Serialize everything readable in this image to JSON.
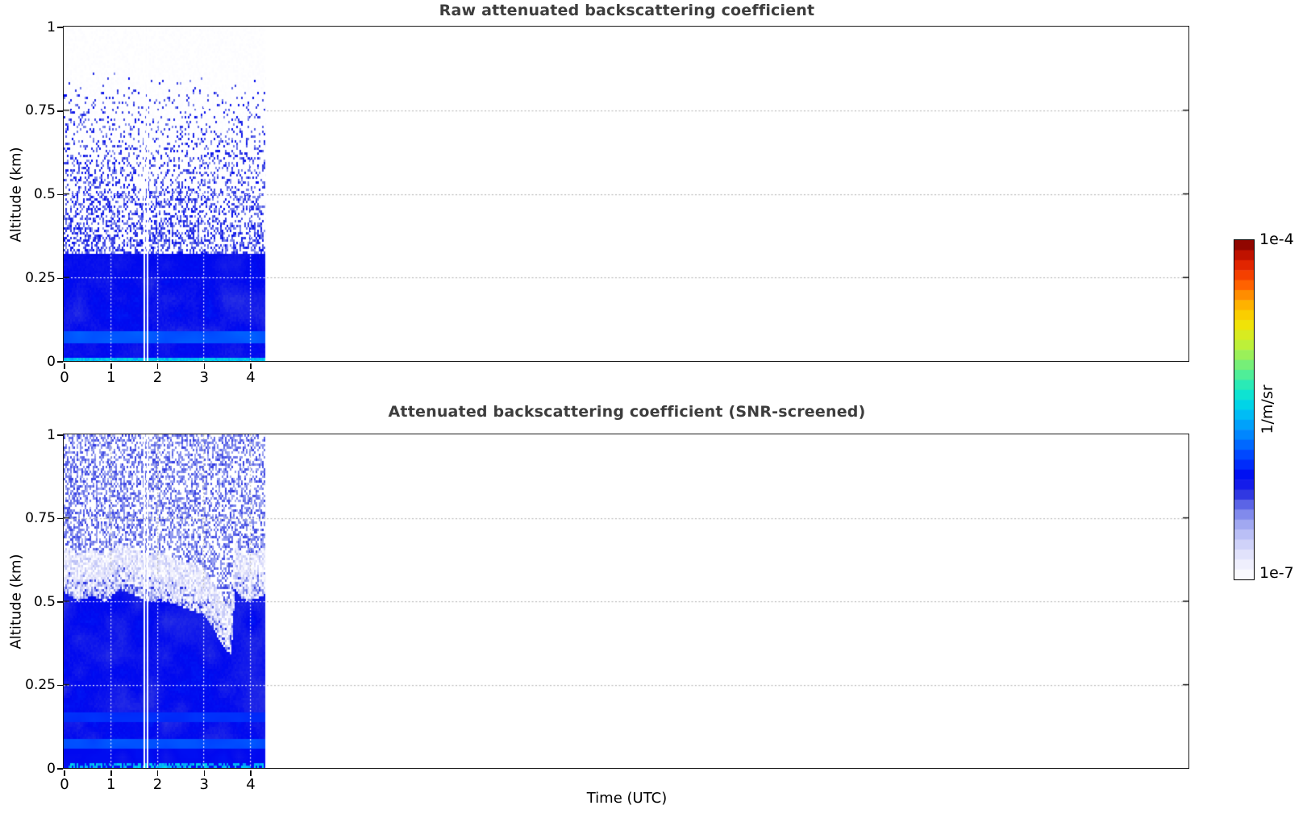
{
  "figure": {
    "background_color": "#ffffff",
    "frame_color": "#1b1b1b",
    "title_color": "#3d3d3d",
    "gridline_style": "dotted",
    "gridline_color_over_white": "#bdbdbd",
    "gridline_color_over_data": "#ffffff",
    "x_axis_label": "Time (UTC)"
  },
  "chart_data": [
    {
      "type": "heatmap",
      "panel": "top",
      "title": "Raw attenuated backscattering coefficient",
      "xlabel": "",
      "ylabel": "Altitude (km)",
      "xlim": [
        0,
        24.16
      ],
      "ylim": [
        0,
        1
      ],
      "xticks": [
        0,
        1,
        2,
        3,
        4
      ],
      "xtick_labels": [
        "0",
        "1",
        "2",
        "3",
        "4"
      ],
      "yticks": [
        0,
        0.25,
        0.5,
        0.75,
        1
      ],
      "ytick_labels": [
        "0",
        "0.25",
        "0.5",
        "0.75",
        "1"
      ],
      "grid": true,
      "data_time_extent_hours": [
        0,
        4.33
      ],
      "missing_data_gap_hours": [
        1.714,
        1.783
      ],
      "value_scale": {
        "type": "log",
        "vmin": 1e-07,
        "vmax": 0.0001,
        "units": "1/m/sr"
      },
      "altitude_layers": [
        {
          "alt_range_km": [
            0,
            0.012
          ],
          "approx_backscatter": 3e-06,
          "note": "surface echo band with cyan streaks"
        },
        {
          "alt_range_km": [
            0.012,
            0.055
          ],
          "approx_backscatter": 9e-07
        },
        {
          "alt_range_km": [
            0.055,
            0.088
          ],
          "approx_backscatter": 1.6e-06,
          "note": "lighter blue band"
        },
        {
          "alt_range_km": [
            0.088,
            0.25
          ],
          "approx_backscatter": 1e-06,
          "note": "mottled blue"
        },
        {
          "alt_range_km": [
            0.25,
            0.32
          ],
          "approx_backscatter": 9e-07
        },
        {
          "alt_range_km": [
            0.32,
            1.0
          ],
          "approx_backscatter": 3e-07,
          "note": "uncorrected noise speckle, white fraction grows with altitude"
        }
      ]
    },
    {
      "type": "heatmap",
      "panel": "bottom",
      "title": "Attenuated backscattering coefficient (SNR-screened)",
      "xlabel": "Time (UTC)",
      "ylabel": "Altitude (km)",
      "xlim": [
        0,
        24.16
      ],
      "ylim": [
        0,
        1
      ],
      "xticks": [
        0,
        1,
        2,
        3,
        4
      ],
      "xtick_labels": [
        "0",
        "1",
        "2",
        "3",
        "4"
      ],
      "yticks": [
        0,
        0.25,
        0.5,
        0.75,
        1
      ],
      "ytick_labels": [
        "0",
        "0.25",
        "0.5",
        "0.75",
        "1"
      ],
      "grid": true,
      "data_time_extent_hours": [
        0,
        4.33
      ],
      "missing_data_gap_hours": [
        1.714,
        1.783
      ],
      "value_scale": {
        "type": "log",
        "vmin": 1e-07,
        "vmax": 0.0001,
        "units": "1/m/sr"
      },
      "data_top_boundary": {
        "x_hours": [
          0,
          0.3,
          0.6,
          0.9,
          1.2,
          1.5,
          1.8,
          2.1,
          2.4,
          2.7,
          3.0,
          3.2,
          3.45,
          3.6,
          3.68,
          3.8,
          4.0,
          4.33
        ],
        "altitude_km": [
          0.63,
          0.6,
          0.615,
          0.6,
          0.635,
          0.62,
          0.6,
          0.605,
          0.59,
          0.575,
          0.56,
          0.52,
          0.46,
          0.44,
          0.64,
          0.61,
          0.6,
          0.62
        ]
      },
      "altitude_layers": [
        {
          "alt_range_km": [
            0,
            0.012
          ],
          "approx_backscatter": 9e-07,
          "note": "thin surface line, rare cyan specks"
        },
        {
          "alt_range_km": [
            0.012,
            0.055
          ],
          "approx_backscatter": 9e-07
        },
        {
          "alt_range_km": [
            0.055,
            0.09
          ],
          "approx_backscatter": 1.5e-06,
          "note": "lighter blue band"
        },
        {
          "alt_range_km": [
            0.09,
            0.45
          ],
          "approx_backscatter": 1e-06,
          "note": "mottled blue"
        },
        {
          "alt_range_km": [
            0.45,
            0.65
          ],
          "approx_backscatter": 3e-07,
          "note": "fuzzy screened top edge, lavender speckle"
        },
        {
          "alt_range_km": [
            0.65,
            1.0
          ],
          "approx_backscatter": null,
          "note": "screened out, sparse isolated blue dots"
        }
      ]
    }
  ],
  "colorbar": {
    "label_top": "1e-4",
    "label_bottom": "1e-7",
    "units_label": "1/m/sr",
    "scale": "log",
    "colormap": "jet with white at low end",
    "n_steps": 34,
    "stops": [
      [
        0.0,
        "#ffffff"
      ],
      [
        0.06,
        "#e9e9fc"
      ],
      [
        0.12,
        "#c5c9f8"
      ],
      [
        0.17,
        "#9aa2f0"
      ],
      [
        0.21,
        "#6a74e8"
      ],
      [
        0.25,
        "#3038e2"
      ],
      [
        0.3,
        "#0008f0"
      ],
      [
        0.36,
        "#0040ff"
      ],
      [
        0.42,
        "#0080ff"
      ],
      [
        0.48,
        "#00b8f8"
      ],
      [
        0.53,
        "#00e0e0"
      ],
      [
        0.58,
        "#30ecb0"
      ],
      [
        0.64,
        "#80f070"
      ],
      [
        0.7,
        "#c8f030"
      ],
      [
        0.76,
        "#f8e000"
      ],
      [
        0.82,
        "#ffa800"
      ],
      [
        0.88,
        "#ff5000"
      ],
      [
        0.94,
        "#d81800"
      ],
      [
        1.0,
        "#7a0000"
      ]
    ]
  }
}
